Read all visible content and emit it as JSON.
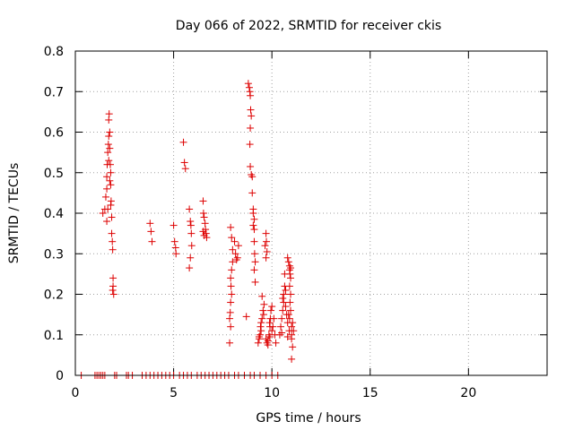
{
  "chart_data": {
    "type": "scatter",
    "title": "Day 066 of 2022, SRMTID for receiver ckis",
    "xlabel": "GPS time / hours",
    "ylabel": "SRMTID / TECUs",
    "xlim": [
      0,
      24
    ],
    "ylim": [
      0,
      0.8
    ],
    "xticks": [
      0,
      5,
      10,
      15,
      20
    ],
    "xtick_labels": [
      "0",
      "5",
      "10",
      "15",
      "20"
    ],
    "yticks": [
      0,
      0.1,
      0.2,
      0.3,
      0.4,
      0.5,
      0.6,
      0.7,
      0.8
    ],
    "ytick_labels": [
      "0",
      "0.1",
      "0.2",
      "0.3",
      "0.4",
      "0.5",
      "0.6",
      "0.7",
      "0.8"
    ],
    "grid": true,
    "marker": "+",
    "color": "#dd0000",
    "series": [
      {
        "name": "SRMTID",
        "points": [
          [
            0.3,
            0
          ],
          [
            1.0,
            0
          ],
          [
            1.1,
            0
          ],
          [
            1.2,
            0
          ],
          [
            1.3,
            0
          ],
          [
            1.4,
            0
          ],
          [
            1.5,
            0
          ],
          [
            2.0,
            0
          ],
          [
            2.1,
            0
          ],
          [
            2.6,
            0
          ],
          [
            2.7,
            0
          ],
          [
            2.9,
            0
          ],
          [
            3.4,
            0
          ],
          [
            3.6,
            0
          ],
          [
            3.8,
            0
          ],
          [
            4.0,
            0
          ],
          [
            4.2,
            0
          ],
          [
            4.4,
            0
          ],
          [
            4.6,
            0
          ],
          [
            4.8,
            0
          ],
          [
            5.0,
            0
          ],
          [
            5.3,
            0
          ],
          [
            5.5,
            0
          ],
          [
            5.7,
            0
          ],
          [
            5.9,
            0
          ],
          [
            6.2,
            0
          ],
          [
            6.4,
            0
          ],
          [
            6.6,
            0
          ],
          [
            6.8,
            0
          ],
          [
            7.0,
            0
          ],
          [
            7.2,
            0
          ],
          [
            7.4,
            0
          ],
          [
            7.6,
            0
          ],
          [
            7.8,
            0
          ],
          [
            8.1,
            0
          ],
          [
            8.3,
            0
          ],
          [
            8.6,
            0
          ],
          [
            8.9,
            0
          ],
          [
            9.1,
            0
          ],
          [
            9.4,
            0
          ],
          [
            9.7,
            0
          ],
          [
            10.0,
            0
          ],
          [
            10.3,
            0
          ],
          [
            1.4,
            0.4
          ],
          [
            1.5,
            0.41
          ],
          [
            1.55,
            0.44
          ],
          [
            1.6,
            0.46
          ],
          [
            1.6,
            0.49
          ],
          [
            1.62,
            0.52
          ],
          [
            1.65,
            0.55
          ],
          [
            1.68,
            0.57
          ],
          [
            1.7,
            0.59
          ],
          [
            1.7,
            0.63
          ],
          [
            1.72,
            0.645
          ],
          [
            1.75,
            0.6
          ],
          [
            1.75,
            0.56
          ],
          [
            1.78,
            0.52
          ],
          [
            1.8,
            0.5
          ],
          [
            1.8,
            0.47
          ],
          [
            1.82,
            0.43
          ],
          [
            1.85,
            0.39
          ],
          [
            1.85,
            0.35
          ],
          [
            1.88,
            0.33
          ],
          [
            1.9,
            0.31
          ],
          [
            1.92,
            0.24
          ],
          [
            1.92,
            0.22
          ],
          [
            1.95,
            0.2
          ],
          [
            1.9,
            0.21
          ],
          [
            1.6,
            0.38
          ],
          [
            1.65,
            0.41
          ],
          [
            1.7,
            0.53
          ],
          [
            1.75,
            0.48
          ],
          [
            1.8,
            0.42
          ],
          [
            3.8,
            0.375
          ],
          [
            3.85,
            0.355
          ],
          [
            3.9,
            0.33
          ],
          [
            5.0,
            0.37
          ],
          [
            5.05,
            0.33
          ],
          [
            5.1,
            0.315
          ],
          [
            5.12,
            0.3
          ],
          [
            5.5,
            0.575
          ],
          [
            5.55,
            0.525
          ],
          [
            5.6,
            0.51
          ],
          [
            5.8,
            0.41
          ],
          [
            5.85,
            0.38
          ],
          [
            5.88,
            0.37
          ],
          [
            5.9,
            0.35
          ],
          [
            5.92,
            0.32
          ],
          [
            5.85,
            0.29
          ],
          [
            5.8,
            0.265
          ],
          [
            6.5,
            0.43
          ],
          [
            6.52,
            0.4
          ],
          [
            6.55,
            0.39
          ],
          [
            6.6,
            0.375
          ],
          [
            6.62,
            0.36
          ],
          [
            6.65,
            0.35
          ],
          [
            6.68,
            0.34
          ],
          [
            6.5,
            0.355
          ],
          [
            6.55,
            0.345
          ],
          [
            7.9,
            0.365
          ],
          [
            7.95,
            0.34
          ],
          [
            8.0,
            0.31
          ],
          [
            8.0,
            0.28
          ],
          [
            7.95,
            0.26
          ],
          [
            7.9,
            0.24
          ],
          [
            7.92,
            0.22
          ],
          [
            7.95,
            0.2
          ],
          [
            7.9,
            0.18
          ],
          [
            7.88,
            0.155
          ],
          [
            7.85,
            0.14
          ],
          [
            7.9,
            0.12
          ],
          [
            7.85,
            0.08
          ],
          [
            8.1,
            0.33
          ],
          [
            8.15,
            0.3
          ],
          [
            8.2,
            0.285
          ],
          [
            8.25,
            0.29
          ],
          [
            8.3,
            0.32
          ],
          [
            8.7,
            0.145
          ],
          [
            8.8,
            0.72
          ],
          [
            8.85,
            0.71
          ],
          [
            8.9,
            0.69
          ],
          [
            8.88,
            0.7
          ],
          [
            8.92,
            0.655
          ],
          [
            8.95,
            0.64
          ],
          [
            8.9,
            0.61
          ],
          [
            8.88,
            0.57
          ],
          [
            8.9,
            0.515
          ],
          [
            8.95,
            0.495
          ],
          [
            9.0,
            0.49
          ],
          [
            9.0,
            0.45
          ],
          [
            9.05,
            0.41
          ],
          [
            9.05,
            0.4
          ],
          [
            9.1,
            0.385
          ],
          [
            9.05,
            0.37
          ],
          [
            9.1,
            0.36
          ],
          [
            9.1,
            0.33
          ],
          [
            9.12,
            0.3
          ],
          [
            9.15,
            0.28
          ],
          [
            9.1,
            0.26
          ],
          [
            9.15,
            0.23
          ],
          [
            9.3,
            0.08
          ],
          [
            9.35,
            0.09
          ],
          [
            9.4,
            0.1
          ],
          [
            9.42,
            0.12
          ],
          [
            9.45,
            0.13
          ],
          [
            9.5,
            0.14
          ],
          [
            9.55,
            0.16
          ],
          [
            9.6,
            0.175
          ],
          [
            9.5,
            0.195
          ],
          [
            9.58,
            0.15
          ],
          [
            9.45,
            0.11
          ],
          [
            9.35,
            0.095
          ],
          [
            9.7,
            0.35
          ],
          [
            9.72,
            0.33
          ],
          [
            9.75,
            0.305
          ],
          [
            9.7,
            0.29
          ],
          [
            9.65,
            0.32
          ],
          [
            9.7,
            0.09
          ],
          [
            9.75,
            0.08
          ],
          [
            9.8,
            0.085
          ],
          [
            9.85,
            0.1
          ],
          [
            9.9,
            0.12
          ],
          [
            9.92,
            0.14
          ],
          [
            9.95,
            0.16
          ],
          [
            9.88,
            0.13
          ],
          [
            9.8,
            0.075
          ],
          [
            9.9,
            0.095
          ],
          [
            10.0,
            0.11
          ],
          [
            10.05,
            0.12
          ],
          [
            10.1,
            0.14
          ],
          [
            10.0,
            0.17
          ],
          [
            10.15,
            0.1
          ],
          [
            10.2,
            0.08
          ],
          [
            10.4,
            0.1
          ],
          [
            10.45,
            0.12
          ],
          [
            10.5,
            0.14
          ],
          [
            10.55,
            0.16
          ],
          [
            10.6,
            0.18
          ],
          [
            10.6,
            0.2
          ],
          [
            10.65,
            0.22
          ],
          [
            10.7,
            0.17
          ],
          [
            10.75,
            0.15
          ],
          [
            10.8,
            0.13
          ],
          [
            10.55,
            0.19
          ],
          [
            10.65,
            0.25
          ],
          [
            10.7,
            0.21
          ],
          [
            10.5,
            0.105
          ],
          [
            10.8,
            0.29
          ],
          [
            10.85,
            0.28
          ],
          [
            10.9,
            0.27
          ],
          [
            10.9,
            0.26
          ],
          [
            10.92,
            0.25
          ],
          [
            10.95,
            0.24
          ],
          [
            10.9,
            0.22
          ],
          [
            10.95,
            0.2
          ],
          [
            10.92,
            0.18
          ],
          [
            10.95,
            0.16
          ],
          [
            10.9,
            0.14
          ],
          [
            11.0,
            0.12
          ],
          [
            11.0,
            0.1
          ],
          [
            11.0,
            0.09
          ],
          [
            11.05,
            0.07
          ],
          [
            11.0,
            0.04
          ],
          [
            11.05,
            0.13
          ],
          [
            11.1,
            0.11
          ],
          [
            10.95,
            0.265
          ],
          [
            10.85,
            0.15
          ],
          [
            10.88,
            0.11
          ],
          [
            10.8,
            0.095
          ]
        ]
      }
    ]
  }
}
